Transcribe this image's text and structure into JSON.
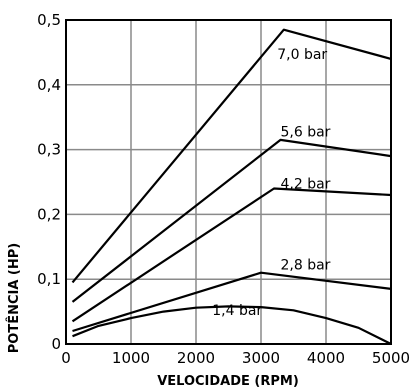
{
  "chart_data": {
    "type": "line",
    "title": "",
    "xlabel": "VELOCIDADE (RPM)",
    "ylabel": "POTÊNCIA (HP)",
    "xlim": [
      0,
      5000
    ],
    "ylim": [
      0,
      0.5
    ],
    "x_ticks": [
      0,
      1000,
      2000,
      3000,
      4000,
      5000
    ],
    "x_tick_labels": [
      "0",
      "1000",
      "2000",
      "3000",
      "4000",
      "5000"
    ],
    "y_ticks": [
      0,
      0.1,
      0.2,
      0.3,
      0.4,
      0.5
    ],
    "y_tick_labels": [
      "0",
      "0,1",
      "0,2",
      "0,3",
      "0,4",
      "0,5"
    ],
    "grid": true,
    "legend": "inline labels",
    "series": [
      {
        "name": "7,0 bar",
        "x": [
          100,
          3350,
          5000
        ],
        "y": [
          0.095,
          0.485,
          0.44
        ]
      },
      {
        "name": "5,6 bar",
        "x": [
          100,
          3300,
          5000
        ],
        "y": [
          0.065,
          0.315,
          0.29
        ]
      },
      {
        "name": "4,2 bar",
        "x": [
          100,
          3200,
          5000
        ],
        "y": [
          0.035,
          0.24,
          0.23
        ]
      },
      {
        "name": "2,8 bar",
        "x": [
          100,
          3000,
          5000
        ],
        "y": [
          0.02,
          0.11,
          0.085
        ]
      },
      {
        "name": "1,4 bar",
        "x": [
          100,
          500,
          1000,
          1500,
          2000,
          2500,
          3000,
          3500,
          4000,
          4500,
          5000
        ],
        "y": [
          0.012,
          0.028,
          0.04,
          0.05,
          0.056,
          0.058,
          0.057,
          0.052,
          0.04,
          0.025,
          0.0
        ]
      }
    ],
    "series_label_positions": [
      {
        "x": 3250,
        "y": 0.44
      },
      {
        "x": 3300,
        "y": 0.32
      },
      {
        "x": 3300,
        "y": 0.24
      },
      {
        "x": 3300,
        "y": 0.115
      },
      {
        "x": 2250,
        "y": 0.045
      }
    ]
  }
}
